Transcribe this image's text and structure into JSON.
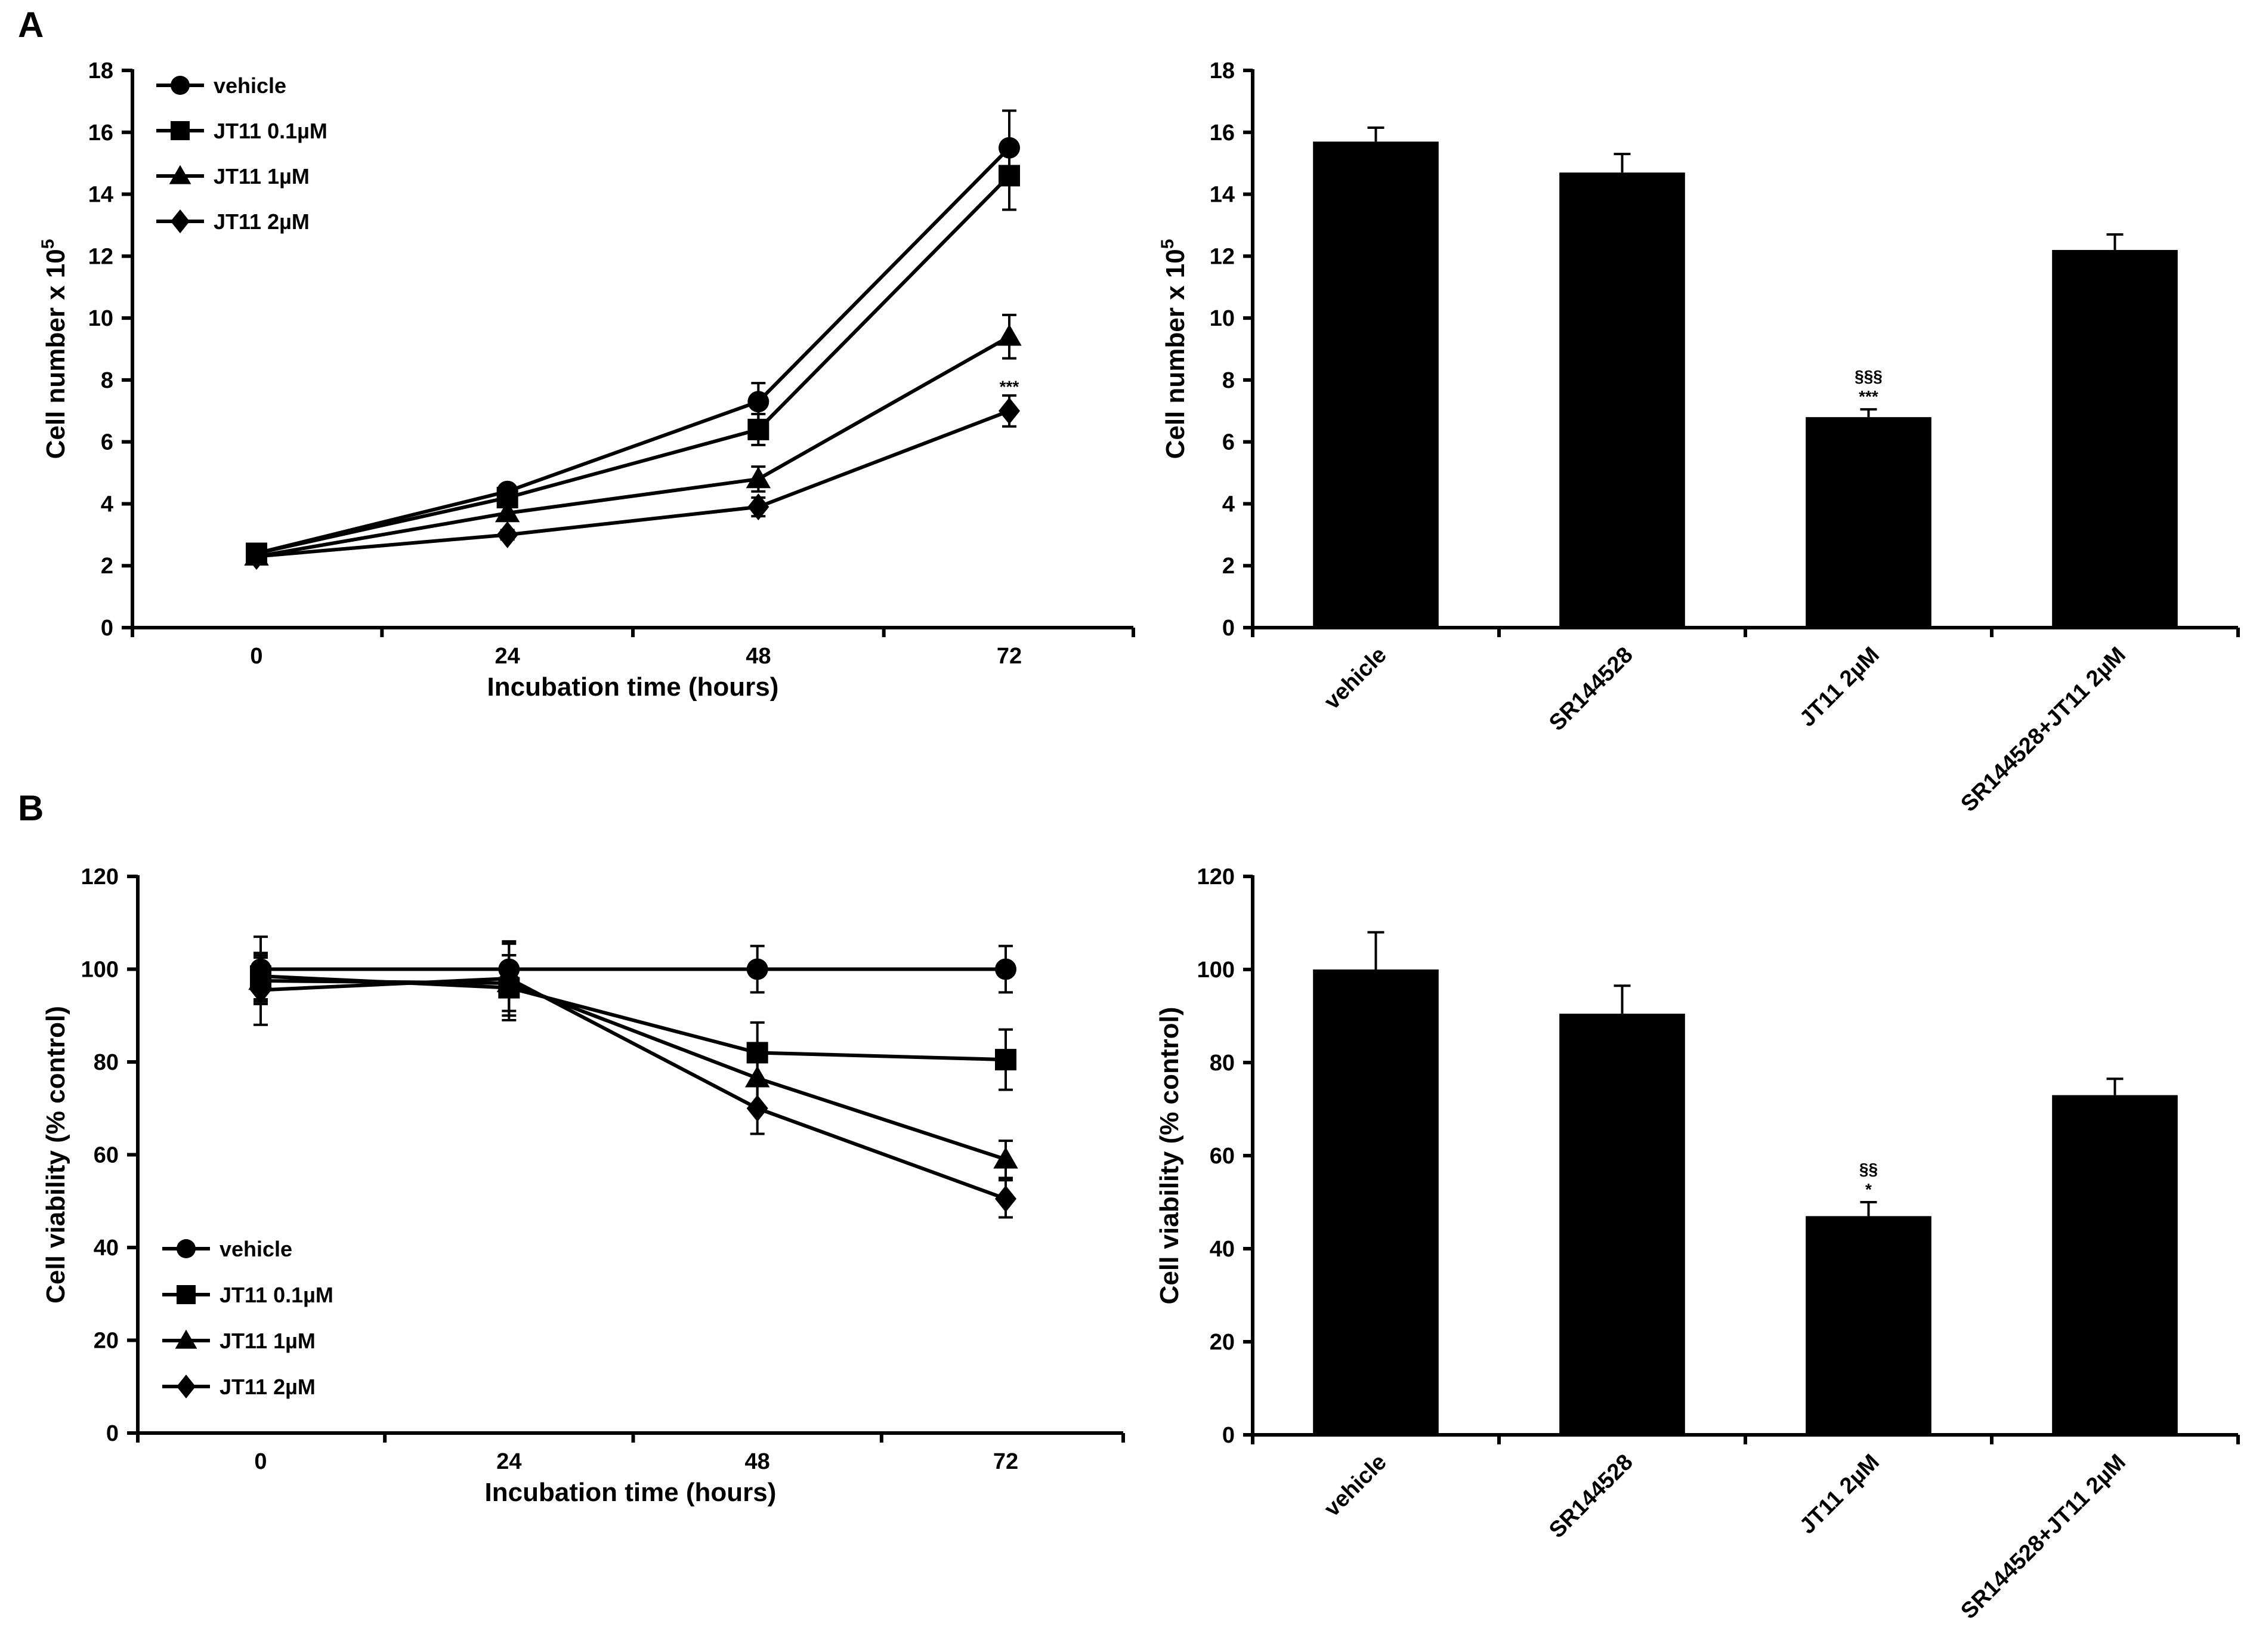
{
  "figure": {
    "panel_labels": [
      "A",
      "B"
    ]
  },
  "chart_data": [
    {
      "id": "A-line",
      "type": "line",
      "xlabel": "Incubation time (hours)",
      "ylabel_main": "Cell number x 10",
      "ylabel_sup": "5",
      "x": [
        0,
        24,
        48,
        72
      ],
      "x_tick_labels": [
        "0",
        "24",
        "48",
        "72"
      ],
      "y_ticks": [
        0,
        2,
        4,
        6,
        8,
        10,
        12,
        14,
        16,
        18
      ],
      "ylim": [
        0,
        18
      ],
      "legend_position": "top-left",
      "series": [
        {
          "name": "vehicle",
          "marker": "circle",
          "values": [
            2.4,
            4.4,
            7.3,
            15.5
          ],
          "errors": [
            0.2,
            0.2,
            0.6,
            1.2
          ]
        },
        {
          "name": "JT11 0.1µM",
          "marker": "square",
          "values": [
            2.4,
            4.2,
            6.4,
            14.6
          ],
          "errors": [
            0.2,
            0.2,
            0.5,
            1.1
          ]
        },
        {
          "name": "JT11 1µM",
          "marker": "triangle",
          "values": [
            2.3,
            3.7,
            4.8,
            9.4
          ],
          "errors": [
            0.2,
            0.2,
            0.4,
            0.7
          ]
        },
        {
          "name": "JT11 2µM",
          "marker": "diamond",
          "values": [
            2.3,
            3.0,
            3.9,
            7.0
          ],
          "errors": [
            0.2,
            0.15,
            0.3,
            0.5
          ]
        }
      ],
      "annotations": [
        {
          "x": 72,
          "y": 7.6,
          "text": "***"
        }
      ]
    },
    {
      "id": "A-bar",
      "type": "bar",
      "ylabel_main": "Cell number x 10",
      "ylabel_sup": "5",
      "categories": [
        "vehicle",
        "SR144528",
        "JT11 2µM",
        "SR144528+JT11 2µM"
      ],
      "values": [
        15.7,
        14.7,
        6.8,
        12.2
      ],
      "errors": [
        0.45,
        0.6,
        0.25,
        0.5
      ],
      "y_ticks": [
        0,
        2,
        4,
        6,
        8,
        10,
        12,
        14,
        16,
        18
      ],
      "ylim": [
        0,
        18
      ],
      "annotations": [
        {
          "category": 2,
          "lines": [
            "§§§",
            "***"
          ]
        }
      ]
    },
    {
      "id": "B-line",
      "type": "line",
      "xlabel": "Incubation time (hours)",
      "ylabel": "Cell viability (% control)",
      "x": [
        0,
        24,
        48,
        72
      ],
      "x_tick_labels": [
        "0",
        "24",
        "48",
        "72"
      ],
      "y_ticks": [
        0,
        20,
        40,
        60,
        80,
        100,
        120
      ],
      "ylim": [
        0,
        120
      ],
      "legend_position": "bottom-left",
      "series": [
        {
          "name": "vehicle",
          "marker": "circle",
          "values": [
            100,
            100,
            100,
            100
          ],
          "errors": [
            7,
            5.5,
            5,
            5
          ]
        },
        {
          "name": "JT11 0.1µM",
          "marker": "square",
          "values": [
            98.5,
            96,
            82,
            80.5
          ],
          "errors": [
            5,
            7,
            6.5,
            6.5
          ]
        },
        {
          "name": "JT11 1µM",
          "marker": "triangle",
          "values": [
            97.5,
            97,
            76.5,
            59
          ],
          "errors": [
            5,
            6,
            6,
            4
          ]
        },
        {
          "name": "JT11 2µM",
          "marker": "diamond",
          "values": [
            95.5,
            98,
            70,
            50.5
          ],
          "errors": [
            7.5,
            8,
            5.5,
            4
          ]
        }
      ]
    },
    {
      "id": "B-bar",
      "type": "bar",
      "ylabel": "Cell viability (% control)",
      "categories": [
        "vehicle",
        "SR144528",
        "JT11 2µM",
        "SR144528+JT11 2µM"
      ],
      "values": [
        100,
        90.5,
        47,
        73
      ],
      "errors": [
        8,
        6,
        3,
        3.5
      ],
      "y_ticks": [
        0,
        20,
        40,
        60,
        80,
        100,
        120
      ],
      "ylim": [
        0,
        120
      ],
      "annotations": [
        {
          "category": 2,
          "lines": [
            "§§",
            "*"
          ]
        }
      ]
    }
  ]
}
